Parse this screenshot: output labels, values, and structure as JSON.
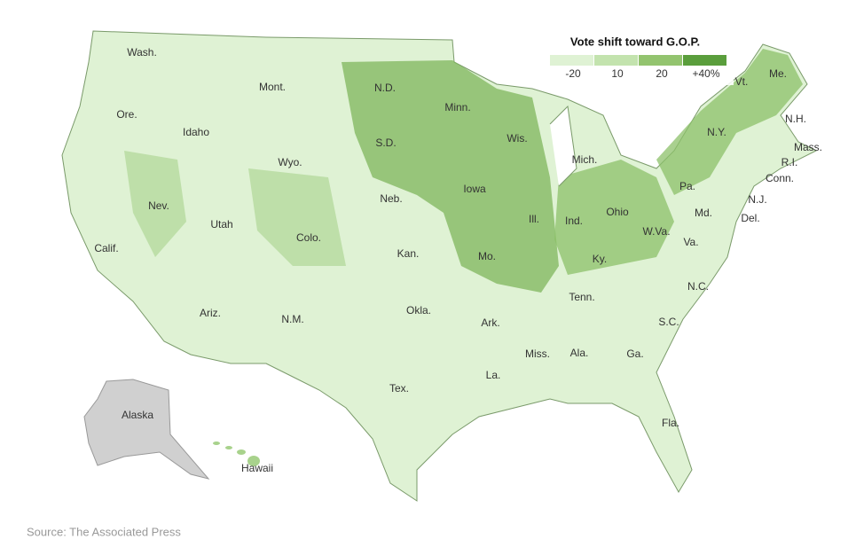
{
  "legend": {
    "title": "Vote shift toward G.O.P.",
    "labels": [
      "-20",
      "10",
      "20",
      "+40%"
    ]
  },
  "states": [
    "Wash.",
    "Ore.",
    "Calif.",
    "Idaho",
    "Nev.",
    "Mont.",
    "Wyo.",
    "Utah",
    "Ariz.",
    "Colo.",
    "N.M.",
    "N.D.",
    "S.D.",
    "Neb.",
    "Kan.",
    "Okla.",
    "Tex.",
    "Minn.",
    "Iowa",
    "Mo.",
    "Ark.",
    "La.",
    "Wis.",
    "Ill.",
    "Mich.",
    "Ind.",
    "Ohio",
    "Ky.",
    "Tenn.",
    "Miss.",
    "Ala.",
    "Ga.",
    "Fla.",
    "S.C.",
    "N.C.",
    "Va.",
    "W.Va.",
    "Md.",
    "Del.",
    "N.J.",
    "Pa.",
    "N.Y.",
    "Vt.",
    "N.H.",
    "Me.",
    "Mass.",
    "R.I.",
    "Conn.",
    "Alaska",
    "Hawaii"
  ],
  "source": "Source: The Associated Press"
}
